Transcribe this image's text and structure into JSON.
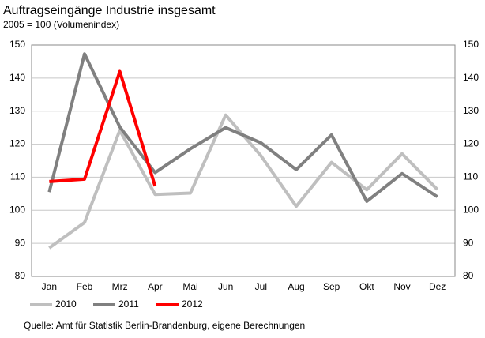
{
  "chart_data": {
    "type": "line",
    "title": "Auftragseingänge Industrie insgesamt",
    "subtitle": "2005 = 100 (Volumenindex)",
    "source": "Quelle: Amt für Statistik Berlin-Brandenburg, eigene Berechnungen",
    "categories": [
      "Jan",
      "Feb",
      "Mrz",
      "Apr",
      "Mai",
      "Jun",
      "Jul",
      "Aug",
      "Sep",
      "Okt",
      "Nov",
      "Dez"
    ],
    "series": [
      {
        "name": "2010",
        "color": "#bfbfbf",
        "values": [
          88.6,
          96.3,
          124.2,
          104.8,
          105.2,
          128.8,
          116.5,
          101.2,
          114.5,
          106.2,
          117.1,
          106.3
        ]
      },
      {
        "name": "2011",
        "color": "#808080",
        "values": [
          105.5,
          147.3,
          125.2,
          111.4,
          118.6,
          125.0,
          120.4,
          112.3,
          122.8,
          102.7,
          111.1,
          104.1
        ]
      },
      {
        "name": "2012",
        "color": "#ff0000",
        "values": [
          108.7,
          109.4,
          142.0,
          107.3,
          null,
          null,
          null,
          null,
          null,
          null,
          null,
          null
        ]
      }
    ],
    "ylim": [
      80,
      150
    ],
    "yticks": [
      80,
      90,
      100,
      110,
      120,
      130,
      140,
      150
    ],
    "grid": true
  }
}
